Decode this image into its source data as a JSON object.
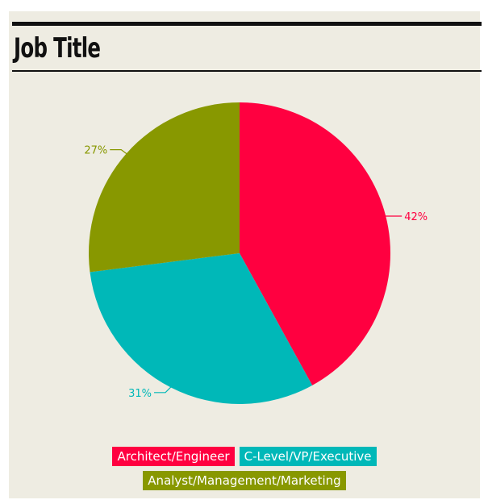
{
  "chart_data": {
    "type": "pie",
    "title": "Job Title",
    "slices": [
      {
        "label": "Architect/Engineer",
        "value": 42,
        "value_label": "42%",
        "color": "#ff0040"
      },
      {
        "label": "C-Level/VP/Executive",
        "value": 31,
        "value_label": "31%",
        "color": "#00b8b8"
      },
      {
        "label": "Analyst/Management/Marketing",
        "value": 27,
        "value_label": "27%",
        "color": "#889800"
      }
    ],
    "legend_position": "bottom",
    "background": "#eeece2"
  }
}
